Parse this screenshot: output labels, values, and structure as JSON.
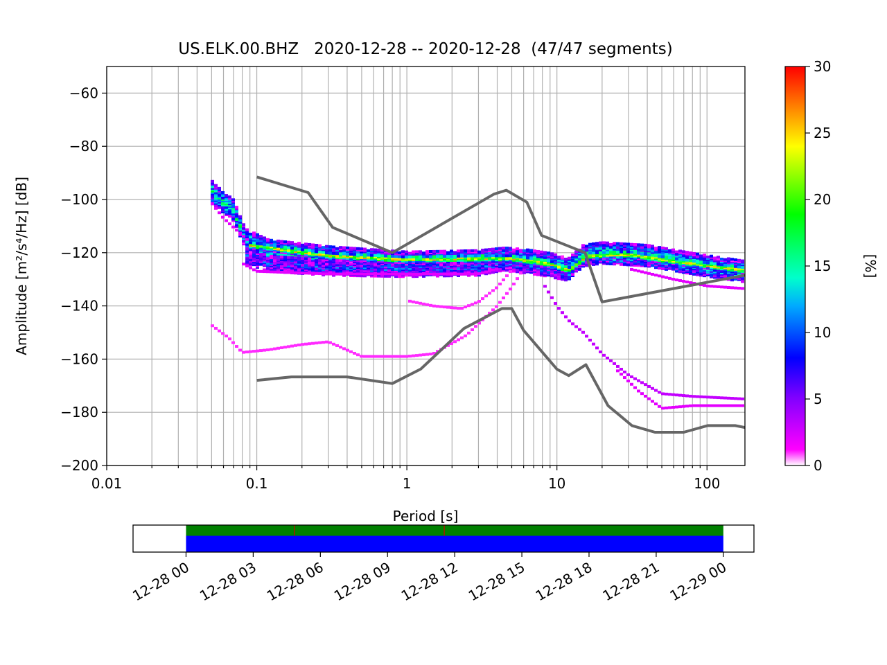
{
  "chart_data": [
    {
      "type": "heatmap",
      "title": "US.ELK.00.BHZ   2020-12-28 -- 2020-12-28  (47/47 segments)",
      "xlabel": "Period [s]",
      "ylabel": "Amplitude [m²/s⁴/Hz] [dB]",
      "x_scale": "log",
      "xlim": [
        0.01,
        179
      ],
      "ylim": [
        -200,
        -50
      ],
      "grid": true,
      "x_ticks": [
        {
          "value": 0.01,
          "label": "0.01"
        },
        {
          "value": 0.1,
          "label": "0.1"
        },
        {
          "value": 1,
          "label": "1"
        },
        {
          "value": 10,
          "label": "10"
        },
        {
          "value": 100,
          "label": "100"
        }
      ],
      "y_ticks": [
        {
          "value": -60,
          "label": "−60"
        },
        {
          "value": -80,
          "label": "−80"
        },
        {
          "value": -100,
          "label": "−100"
        },
        {
          "value": -120,
          "label": "−120"
        },
        {
          "value": -140,
          "label": "−140"
        },
        {
          "value": -160,
          "label": "−160"
        },
        {
          "value": -180,
          "label": "−180"
        },
        {
          "value": -200,
          "label": "−200"
        }
      ],
      "colorbar": {
        "label": "[%]",
        "range": [
          0,
          30
        ],
        "ticks": [
          {
            "value": 0,
            "label": "0"
          },
          {
            "value": 5,
            "label": "5"
          },
          {
            "value": 10,
            "label": "10"
          },
          {
            "value": 15,
            "label": "15"
          },
          {
            "value": 20,
            "label": "20"
          },
          {
            "value": 25,
            "label": "25"
          },
          {
            "value": 30,
            "label": "30"
          }
        ]
      },
      "noise_model_high": [
        [
          0.1,
          -91.5
        ],
        [
          0.22,
          -97.4
        ],
        [
          0.32,
          -110.5
        ],
        [
          0.8,
          -120
        ],
        [
          3.8,
          -98
        ],
        [
          4.6,
          -96.5
        ],
        [
          6.3,
          -101
        ],
        [
          7.9,
          -113.5
        ],
        [
          15.4,
          -120
        ],
        [
          20,
          -138.5
        ],
        [
          179,
          -128.5
        ]
      ],
      "noise_model_low": [
        [
          0.1,
          -168
        ],
        [
          0.17,
          -166.7
        ],
        [
          0.4,
          -166.7
        ],
        [
          0.8,
          -169.2
        ],
        [
          1.24,
          -163.7
        ],
        [
          2.4,
          -148.5
        ],
        [
          4.3,
          -141
        ],
        [
          5,
          -141
        ],
        [
          6,
          -149.2
        ],
        [
          10,
          -163.8
        ],
        [
          12,
          -166.2
        ],
        [
          15.6,
          -162.1
        ],
        [
          21.9,
          -177.5
        ],
        [
          31.6,
          -185
        ],
        [
          45,
          -187.5
        ],
        [
          70,
          -187.5
        ],
        [
          101,
          -185
        ],
        [
          154,
          -185
        ],
        [
          179,
          -185.7
        ]
      ],
      "psd_density_bands": [
        {
          "name_hidden": true,
          "percent": 15,
          "width_db": 8,
          "points": [
            [
              0.048,
              -95
            ],
            [
              0.052,
              -98
            ],
            [
              0.07,
              -104
            ],
            [
              0.085,
              -115
            ],
            [
              0.12,
              -119
            ],
            [
              0.3,
              -121.5
            ],
            [
              1,
              -123.5
            ],
            [
              3,
              -123
            ],
            [
              4.5,
              -122
            ],
            [
              6,
              -122.5
            ],
            [
              9,
              -124
            ],
            [
              12,
              -126
            ],
            [
              15,
              -121
            ],
            [
              20,
              -120
            ],
            [
              40,
              -121
            ],
            [
              80,
              -124
            ],
            [
              179,
              -127
            ]
          ]
        },
        {
          "percent": 8,
          "width_db": 6,
          "points": [
            [
              0.085,
              -121
            ],
            [
              0.12,
              -124
            ],
            [
              0.3,
              -125.5
            ],
            [
              1,
              -126
            ],
            [
              3,
              -125.5
            ],
            [
              4.5,
              -123.5
            ],
            [
              8,
              -125.5
            ],
            [
              12,
              -127.5
            ]
          ]
        },
        {
          "percent": 25,
          "width_db": 2.5,
          "points": [
            [
              0.09,
              -117
            ],
            [
              0.3,
              -121
            ],
            [
              1,
              -122.5
            ],
            [
              3,
              -122
            ],
            [
              5,
              -122
            ],
            [
              9,
              -124
            ],
            [
              12,
              -126.5
            ],
            [
              16,
              -121
            ],
            [
              30,
              -120.5
            ],
            [
              60,
              -123
            ],
            [
              179,
              -126.5
            ]
          ]
        }
      ],
      "psd_outliers": [
        {
          "percent": 2,
          "points": [
            [
              0.048,
              -100
            ],
            [
              0.06,
              -107
            ],
            [
              0.075,
              -112
            ],
            [
              0.09,
              -116
            ]
          ]
        },
        {
          "percent": 2,
          "points": [
            [
              0.08,
              -124
            ],
            [
              0.1,
              -127
            ],
            [
              0.3,
              -128
            ],
            [
              1,
              -128
            ],
            [
              3,
              -128
            ],
            [
              4,
              -126
            ]
          ]
        },
        {
          "percent": 1,
          "points": [
            [
              1,
              -138
            ],
            [
              1.5,
              -140
            ],
            [
              2.3,
              -141
            ],
            [
              3,
              -138.5
            ],
            [
              4,
              -133
            ],
            [
              5,
              -126.5
            ]
          ]
        },
        {
          "percent": 1,
          "points": [
            [
              0.048,
              -146.5
            ],
            [
              0.065,
              -152
            ],
            [
              0.08,
              -157.5
            ],
            [
              0.12,
              -156.5
            ],
            [
              0.2,
              -154.5
            ],
            [
              0.3,
              -153.5
            ],
            [
              0.5,
              -159
            ],
            [
              1,
              -159
            ],
            [
              1.5,
              -158
            ],
            [
              2.5,
              -151
            ],
            [
              4,
              -140
            ],
            [
              5,
              -133
            ],
            [
              6,
              -126
            ]
          ]
        },
        {
          "percent": 3,
          "points": [
            [
              8,
              -131
            ],
            [
              10,
              -140
            ],
            [
              12,
              -145.5
            ],
            [
              15,
              -150
            ],
            [
              20,
              -158
            ],
            [
              30,
              -166
            ],
            [
              50,
              -173
            ],
            [
              80,
              -174
            ],
            [
              179,
              -175
            ]
          ]
        },
        {
          "percent": 2,
          "points": [
            [
              25,
              -164
            ],
            [
              35,
              -172
            ],
            [
              50,
              -178.5
            ],
            [
              80,
              -177.5
            ],
            [
              179,
              -177.5
            ]
          ]
        },
        {
          "percent": 2,
          "points": [
            [
              30,
              -126
            ],
            [
              60,
              -130
            ],
            [
              100,
              -132.5
            ],
            [
              179,
              -133.5
            ]
          ]
        }
      ]
    },
    {
      "type": "bar",
      "x_scale": "time",
      "xlim": [
        "2020-12-27T21:38",
        "2020-12-29T01:22"
      ],
      "data_span": [
        "2020-12-28T00:00",
        "2020-12-29T00:00"
      ],
      "bands": [
        {
          "color": "#008000",
          "row": "top"
        },
        {
          "color": "#0000ff",
          "row": "bottom"
        }
      ],
      "gap_marks": [
        "2020-12-28T04:50",
        "2020-12-28T11:32"
      ],
      "gap_mark_color": "#cc0000",
      "x_ticks": [
        {
          "value": "2020-12-28T00:00",
          "label": "12-28 00"
        },
        {
          "value": "2020-12-28T03:00",
          "label": "12-28 03"
        },
        {
          "value": "2020-12-28T06:00",
          "label": "12-28 06"
        },
        {
          "value": "2020-12-28T09:00",
          "label": "12-28 09"
        },
        {
          "value": "2020-12-28T12:00",
          "label": "12-28 12"
        },
        {
          "value": "2020-12-28T15:00",
          "label": "12-28 15"
        },
        {
          "value": "2020-12-28T18:00",
          "label": "12-28 18"
        },
        {
          "value": "2020-12-28T21:00",
          "label": "12-28 21"
        },
        {
          "value": "2020-12-29T00:00",
          "label": "12-29 00"
        }
      ]
    }
  ]
}
